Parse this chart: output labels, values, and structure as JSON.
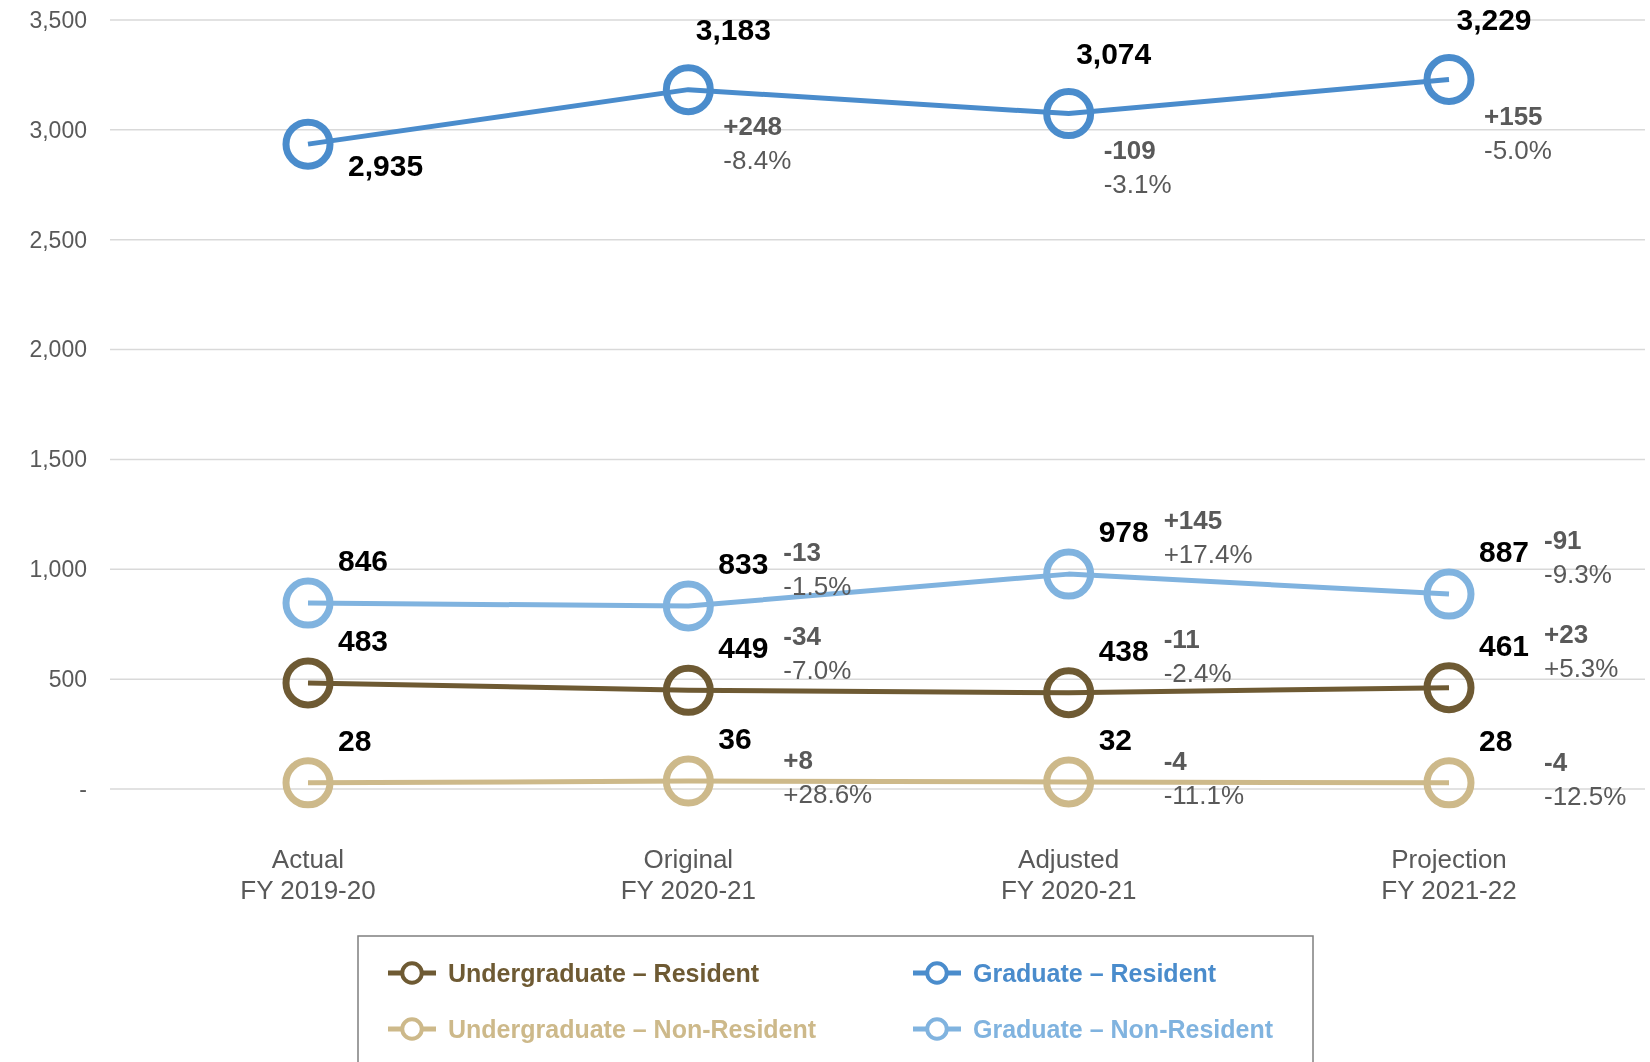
{
  "chart_data": {
    "type": "line",
    "categories": [
      "Actual\nFY 2019-20",
      "Original\nFY 2020-21",
      "Adjusted\nFY 2020-21",
      "Projection\nFY 2021-22"
    ],
    "series": [
      {
        "name": "Undergraduate – Resident",
        "color": "#6e5a33",
        "values": [
          483,
          449,
          438,
          461
        ],
        "value_labels": [
          "483",
          "449",
          "438",
          "461"
        ]
      },
      {
        "name": "Graduate – Resident",
        "color": "#4a8ccc",
        "values": [
          2935,
          3183,
          3074,
          3229
        ],
        "value_labels": [
          "2,935",
          "3,183",
          "3,074",
          "3,229"
        ]
      },
      {
        "name": "Undergraduate – Non-Resident",
        "color": "#cdb98a",
        "values": [
          28,
          36,
          32,
          28
        ],
        "value_labels": [
          "28",
          "36",
          "32",
          "28"
        ]
      },
      {
        "name": "Graduate – Non-Resident",
        "color": "#80b3df",
        "values": [
          846,
          833,
          978,
          887
        ],
        "value_labels": [
          "846",
          "833",
          "978",
          "887"
        ]
      }
    ],
    "ylim": [
      0,
      3500
    ],
    "yticks": [
      {
        "value": 0,
        "label": "-"
      },
      500,
      {
        "value": 1000,
        "label": "1,000"
      },
      {
        "value": 1500,
        "label": "1,500"
      },
      {
        "value": 2000,
        "label": "2,000"
      },
      {
        "value": 2500,
        "label": "2,500"
      },
      {
        "value": 3000,
        "label": "3,000"
      },
      {
        "value": 3500,
        "label": "3,500"
      }
    ],
    "grid": "y",
    "legend": "bottom",
    "marker": "circle",
    "line_style": "solid",
    "annotations": [
      "+248\n-8.4%",
      "-109\n-3.1%",
      "+155\n-5.0%",
      "-13\n-1.5%",
      "+145\n+17.4%",
      "-91\n-9.3%",
      "-34\n-7.0%",
      "-11\n-2.4%",
      "+23\n+5.3%",
      "+8\n+28.6%",
      "-4\n-11.1%",
      "-4\n-12.5%"
    ]
  }
}
